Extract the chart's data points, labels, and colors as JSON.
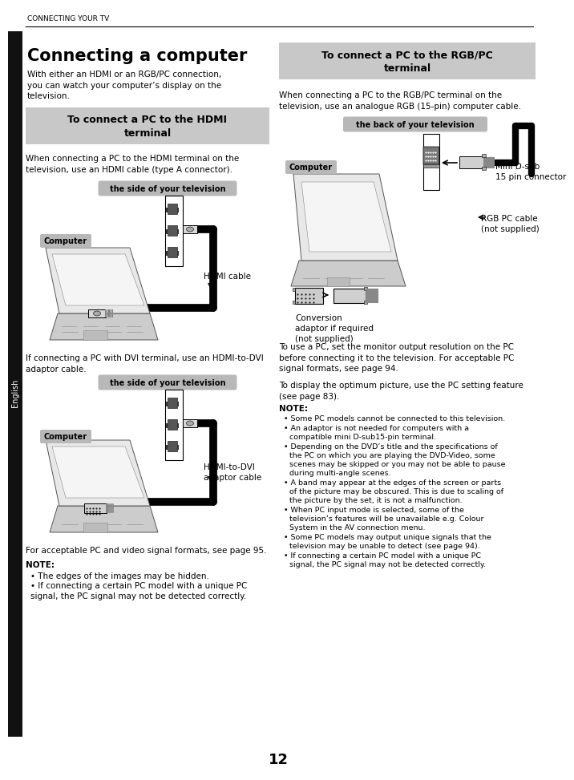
{
  "page_number": "12",
  "header_text": "CONNECTING YOUR TV",
  "sidebar_text": "English",
  "title_left": "Connecting a computer",
  "intro_text": "With either an HDMI or an RGB/PC connection,\nyou can watch your computer’s display on the\ntelevision.",
  "hdmi_section_title": "To connect a PC to the HDMI\nterminal",
  "hdmi_intro": "When connecting a PC to the HDMI terminal on the\ntelevision, use an HDMI cable (type A connector).",
  "hdmi_label1": "the side of your television",
  "hdmi_computer_label": "Computer",
  "hdmi_cable_label": "HDMI cable",
  "hdmi_dvi_text": "If connecting a PC with DVI terminal, use an HDMI-to-DVI\nadaptor cable.",
  "hdmi_label2": "the side of your television",
  "hdmi_computer_label2": "Computer",
  "hdmi_dvi_cable_label": "HDMI-to-DVI\nadaptor cable",
  "pc_note_header": "NOTE:",
  "pc_note1": "The edges of the images may be hidden.",
  "pc_note2": "If connecting a certain PC model with a unique PC\nsignal, the PC signal may not be detected correctly.",
  "pc_page_ref": "For acceptable PC and video signal formats, see page 95.",
  "rgb_section_title": "To connect a PC to the RGB/PC\nterminal",
  "rgb_intro": "When connecting a PC to the RGB/PC terminal on the\ntelevision, use an analogue RGB (15-pin) computer cable.",
  "rgb_label": "the back of your television",
  "rgb_computer_label": "Computer",
  "rgb_connector_label": "Mini D-sub\n15 pin connector",
  "rgb_cable_label": "RGB PC cable\n(not supplied)",
  "rgb_arrow_label": "→",
  "rgb_conversion_label": "Conversion\nadaptor if required\n(not supplied)",
  "rgb_use_text": "To use a PC, set the monitor output resolution on the PC\nbefore connecting it to the television. For acceptable PC\nsignal formats, see page 94.",
  "rgb_display_text": "To display the optimum picture, use the PC setting feature\n(see page 83).",
  "rgb_note_header": "NOTE:",
  "rgb_note1": "Some PC models cannot be connected to this television.",
  "rgb_note2": "An adaptor is not needed for computers with a\ncompatible mini D-sub15-pin terminal.",
  "rgb_note3": "Depending on the DVD’s title and the specifications of\nthe PC on which you are playing the DVD-Video, some\nscenes may be skipped or you may not be able to pause\nduring multi-angle scenes.",
  "rgb_note4": "A band may appear at the edges of the screen or parts\nof the picture may be obscured. This is due to scaling of\nthe picture by the set, it is not a malfunction.",
  "rgb_note5": "When PC input mode is selected, some of the\ntelevision’s features will be unavailable e.g. Colour\nSystem in the AV connection menu.",
  "rgb_note6": "Some PC models may output unique signals that the\ntelevision may be unable to detect (see page 94).",
  "rgb_note7": "If connecting a certain PC model with a unique PC\nsignal, the PC signal may not be detected correctly.",
  "bg_color": "#ffffff",
  "section_bg": "#c8c8c8",
  "sidebar_bg": "#111111",
  "label_bg": "#b8b8b8",
  "note_bullet": "•"
}
